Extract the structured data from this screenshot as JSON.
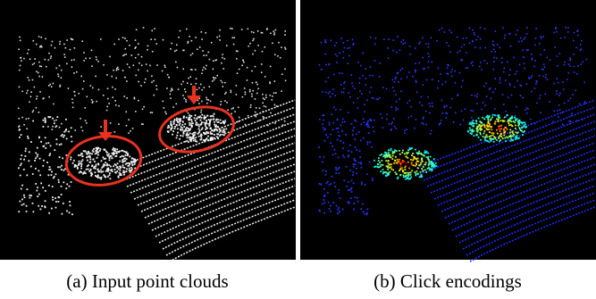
{
  "figure": {
    "panels": [
      {
        "caption": "(a) Input point clouds"
      },
      {
        "caption": "(b) Click encodings"
      }
    ]
  }
}
